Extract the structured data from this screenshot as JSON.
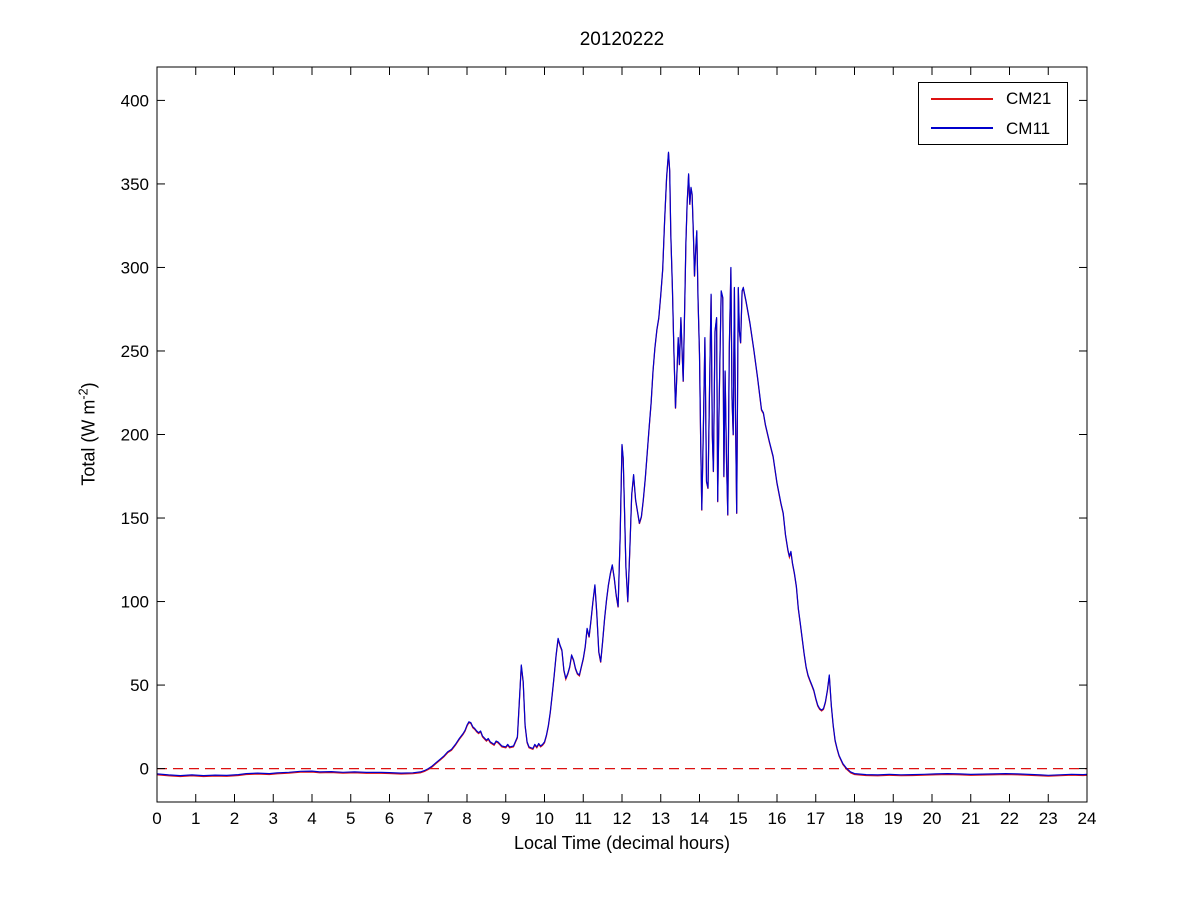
{
  "chart_data": {
    "type": "line",
    "title": "20120222",
    "xlabel": "Local Time (decimal hours)",
    "ylabel": {
      "pre": "Total (W m",
      "sup": "-2",
      "post": ")"
    },
    "xlim": [
      0,
      24
    ],
    "ylim": [
      -20,
      420
    ],
    "x_ticks": [
      0,
      1,
      2,
      3,
      4,
      5,
      6,
      7,
      8,
      9,
      10,
      11,
      12,
      13,
      14,
      15,
      16,
      17,
      18,
      19,
      20,
      21,
      22,
      23,
      24
    ],
    "y_ticks": [
      0,
      50,
      100,
      150,
      200,
      250,
      300,
      350,
      400
    ],
    "grid": false,
    "background": "#ffffff",
    "axis_color": "#000000",
    "legend_position": "northeast",
    "zero_line": {
      "value": 0,
      "color": "#dd1111",
      "style": "dashed"
    },
    "series": [
      {
        "name": "CM21",
        "color": "#dd1111",
        "style": "solid",
        "points_note": "visually coincident with CM11 over the whole day; drawn beneath the blue CM11 trace"
      },
      {
        "name": "CM11",
        "color": "#0000cc",
        "style": "solid",
        "points": [
          [
            0,
            -3.2
          ],
          [
            0.3,
            -3.8
          ],
          [
            0.6,
            -4.2
          ],
          [
            0.9,
            -3.8
          ],
          [
            1.2,
            -4.2
          ],
          [
            1.5,
            -3.9
          ],
          [
            1.8,
            -4.1
          ],
          [
            2.1,
            -3.6
          ],
          [
            2.3,
            -3.0
          ],
          [
            2.6,
            -2.7
          ],
          [
            2.9,
            -3.0
          ],
          [
            3.1,
            -2.6
          ],
          [
            3.4,
            -2.2
          ],
          [
            3.7,
            -1.6
          ],
          [
            4.0,
            -1.5
          ],
          [
            4.2,
            -2.0
          ],
          [
            4.5,
            -1.8
          ],
          [
            4.8,
            -2.2
          ],
          [
            5.1,
            -2.0
          ],
          [
            5.4,
            -2.3
          ],
          [
            5.7,
            -2.2
          ],
          [
            6.0,
            -2.4
          ],
          [
            6.3,
            -2.7
          ],
          [
            6.6,
            -2.5
          ],
          [
            6.8,
            -2.0
          ],
          [
            6.9,
            -1.2
          ],
          [
            7.0,
            0
          ],
          [
            7.1,
            1.5
          ],
          [
            7.2,
            3.5
          ],
          [
            7.3,
            5.5
          ],
          [
            7.4,
            7.5
          ],
          [
            7.5,
            10
          ],
          [
            7.6,
            11.5
          ],
          [
            7.7,
            14.5
          ],
          [
            7.8,
            18
          ],
          [
            7.9,
            21
          ],
          [
            7.95,
            23
          ],
          [
            8.0,
            26
          ],
          [
            8.05,
            28
          ],
          [
            8.1,
            27.5
          ],
          [
            8.15,
            25
          ],
          [
            8.2,
            24
          ],
          [
            8.25,
            22.5
          ],
          [
            8.3,
            21.5
          ],
          [
            8.35,
            22.5
          ],
          [
            8.4,
            19.5
          ],
          [
            8.5,
            17
          ],
          [
            8.55,
            18
          ],
          [
            8.6,
            16
          ],
          [
            8.7,
            14.5
          ],
          [
            8.75,
            16.5
          ],
          [
            8.8,
            16
          ],
          [
            8.9,
            13.5
          ],
          [
            9.0,
            13
          ],
          [
            9.05,
            14.5
          ],
          [
            9.1,
            13
          ],
          [
            9.2,
            13.5
          ],
          [
            9.3,
            19
          ],
          [
            9.35,
            40
          ],
          [
            9.4,
            62
          ],
          [
            9.45,
            52
          ],
          [
            9.5,
            26
          ],
          [
            9.55,
            16
          ],
          [
            9.6,
            13
          ],
          [
            9.7,
            12
          ],
          [
            9.75,
            14.5
          ],
          [
            9.8,
            13
          ],
          [
            9.85,
            15
          ],
          [
            9.9,
            13.5
          ],
          [
            9.95,
            14.5
          ],
          [
            10.0,
            16
          ],
          [
            10.05,
            20
          ],
          [
            10.1,
            26
          ],
          [
            10.15,
            34
          ],
          [
            10.2,
            45
          ],
          [
            10.25,
            56
          ],
          [
            10.3,
            68
          ],
          [
            10.35,
            78
          ],
          [
            10.4,
            74
          ],
          [
            10.45,
            71
          ],
          [
            10.5,
            59
          ],
          [
            10.55,
            54
          ],
          [
            10.6,
            57
          ],
          [
            10.65,
            61
          ],
          [
            10.7,
            68
          ],
          [
            10.75,
            65
          ],
          [
            10.8,
            60
          ],
          [
            10.85,
            57
          ],
          [
            10.9,
            56
          ],
          [
            10.95,
            61
          ],
          [
            11.0,
            66
          ],
          [
            11.05,
            73
          ],
          [
            11.1,
            84
          ],
          [
            11.15,
            79
          ],
          [
            11.2,
            89
          ],
          [
            11.25,
            100
          ],
          [
            11.3,
            110
          ],
          [
            11.35,
            93
          ],
          [
            11.4,
            70
          ],
          [
            11.45,
            64
          ],
          [
            11.5,
            76
          ],
          [
            11.55,
            90
          ],
          [
            11.6,
            101
          ],
          [
            11.65,
            110
          ],
          [
            11.7,
            117
          ],
          [
            11.75,
            122
          ],
          [
            11.8,
            114
          ],
          [
            11.85,
            104
          ],
          [
            11.9,
            97
          ],
          [
            11.95,
            138
          ],
          [
            12.0,
            194
          ],
          [
            12.03,
            186
          ],
          [
            12.06,
            160
          ],
          [
            12.1,
            121
          ],
          [
            12.15,
            100
          ],
          [
            12.2,
            131
          ],
          [
            12.25,
            164
          ],
          [
            12.3,
            176
          ],
          [
            12.35,
            161
          ],
          [
            12.4,
            154
          ],
          [
            12.45,
            147
          ],
          [
            12.5,
            151
          ],
          [
            12.55,
            161
          ],
          [
            12.6,
            174
          ],
          [
            12.65,
            189
          ],
          [
            12.7,
            204
          ],
          [
            12.75,
            219
          ],
          [
            12.8,
            238
          ],
          [
            12.85,
            252
          ],
          [
            12.9,
            263
          ],
          [
            12.95,
            270
          ],
          [
            13.0,
            284
          ],
          [
            13.05,
            299
          ],
          [
            13.1,
            328
          ],
          [
            13.15,
            354
          ],
          [
            13.2,
            369
          ],
          [
            13.23,
            358
          ],
          [
            13.26,
            320
          ],
          [
            13.3,
            288
          ],
          [
            13.34,
            250
          ],
          [
            13.38,
            216
          ],
          [
            13.42,
            238
          ],
          [
            13.45,
            258
          ],
          [
            13.48,
            242
          ],
          [
            13.52,
            270
          ],
          [
            13.55,
            250
          ],
          [
            13.58,
            232
          ],
          [
            13.62,
            280
          ],
          [
            13.65,
            315
          ],
          [
            13.68,
            338
          ],
          [
            13.72,
            356
          ],
          [
            13.75,
            338
          ],
          [
            13.78,
            348
          ],
          [
            13.81,
            344
          ],
          [
            13.84,
            322
          ],
          [
            13.87,
            295
          ],
          [
            13.9,
            310
          ],
          [
            13.93,
            322
          ],
          [
            13.96,
            282
          ],
          [
            14.0,
            248
          ],
          [
            14.03,
            195
          ],
          [
            14.06,
            155
          ],
          [
            14.1,
            205
          ],
          [
            14.14,
            258
          ],
          [
            14.18,
            172
          ],
          [
            14.22,
            168
          ],
          [
            14.26,
            230
          ],
          [
            14.3,
            284
          ],
          [
            14.33,
            200
          ],
          [
            14.36,
            178
          ],
          [
            14.4,
            262
          ],
          [
            14.44,
            270
          ],
          [
            14.47,
            160
          ],
          [
            14.5,
            210
          ],
          [
            14.53,
            248
          ],
          [
            14.56,
            286
          ],
          [
            14.6,
            282
          ],
          [
            14.63,
            175
          ],
          [
            14.66,
            238
          ],
          [
            14.7,
            182
          ],
          [
            14.73,
            152
          ],
          [
            14.77,
            252
          ],
          [
            14.81,
            300
          ],
          [
            14.84,
            222
          ],
          [
            14.87,
            200
          ],
          [
            14.9,
            288
          ],
          [
            14.93,
            210
          ],
          [
            14.96,
            153
          ],
          [
            15.0,
            288
          ],
          [
            15.03,
            262
          ],
          [
            15.06,
            255
          ],
          [
            15.1,
            286
          ],
          [
            15.13,
            288
          ],
          [
            15.2,
            280
          ],
          [
            15.3,
            267
          ],
          [
            15.4,
            251
          ],
          [
            15.5,
            234
          ],
          [
            15.6,
            215
          ],
          [
            15.65,
            213
          ],
          [
            15.7,
            206
          ],
          [
            15.8,
            196
          ],
          [
            15.9,
            187
          ],
          [
            16.0,
            171
          ],
          [
            16.1,
            159
          ],
          [
            16.16,
            153
          ],
          [
            16.22,
            140
          ],
          [
            16.28,
            131
          ],
          [
            16.32,
            127
          ],
          [
            16.36,
            130
          ],
          [
            16.4,
            123
          ],
          [
            16.45,
            117
          ],
          [
            16.5,
            109
          ],
          [
            16.55,
            96
          ],
          [
            16.6,
            87
          ],
          [
            16.65,
            78
          ],
          [
            16.7,
            69
          ],
          [
            16.75,
            61
          ],
          [
            16.8,
            56
          ],
          [
            16.85,
            53
          ],
          [
            16.9,
            50
          ],
          [
            16.95,
            47
          ],
          [
            17.0,
            42
          ],
          [
            17.05,
            38
          ],
          [
            17.1,
            36
          ],
          [
            17.15,
            35
          ],
          [
            17.2,
            36
          ],
          [
            17.25,
            40
          ],
          [
            17.3,
            47
          ],
          [
            17.35,
            56
          ],
          [
            17.4,
            38
          ],
          [
            17.45,
            26
          ],
          [
            17.5,
            17
          ],
          [
            17.55,
            12
          ],
          [
            17.6,
            8
          ],
          [
            17.7,
            3
          ],
          [
            17.8,
            0
          ],
          [
            17.9,
            -2
          ],
          [
            18.0,
            -3
          ],
          [
            18.3,
            -3.6
          ],
          [
            18.6,
            -3.8
          ],
          [
            18.9,
            -3.5
          ],
          [
            19.2,
            -3.7
          ],
          [
            19.5,
            -3.6
          ],
          [
            19.8,
            -3.4
          ],
          [
            20.1,
            -3.2
          ],
          [
            20.4,
            -3.0
          ],
          [
            20.7,
            -3.2
          ],
          [
            21.0,
            -3.5
          ],
          [
            21.3,
            -3.3
          ],
          [
            21.6,
            -3.2
          ],
          [
            21.9,
            -3.0
          ],
          [
            22.2,
            -3.2
          ],
          [
            22.5,
            -3.5
          ],
          [
            22.8,
            -3.8
          ],
          [
            23.0,
            -4.0
          ],
          [
            23.3,
            -3.7
          ],
          [
            23.6,
            -3.4
          ],
          [
            23.9,
            -3.6
          ],
          [
            24,
            -3.5
          ]
        ]
      }
    ]
  }
}
